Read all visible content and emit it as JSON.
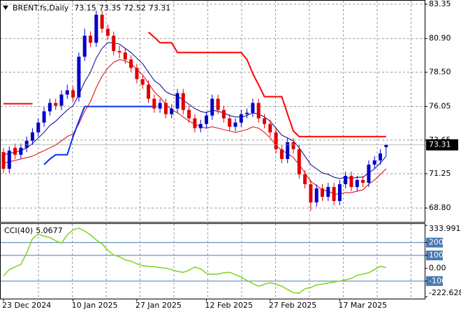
{
  "chart_data": [
    {
      "type": "candlestick",
      "title": "BRENT.fs,Daily",
      "categories": [
        "23 Dec 2024",
        null,
        null,
        null,
        null,
        null,
        null,
        null,
        null,
        null,
        null,
        null,
        "10 Jan 2025",
        null,
        null,
        null,
        null,
        null,
        null,
        null,
        null,
        null,
        null,
        "27 Jan 2025",
        null,
        null,
        null,
        null,
        null,
        null,
        null,
        null,
        null,
        null,
        null,
        "12 Feb 2025",
        null,
        null,
        null,
        null,
        null,
        null,
        null,
        null,
        null,
        null,
        "27 Feb 2025",
        null,
        null,
        null,
        null,
        null,
        null,
        null,
        null,
        null,
        null,
        null,
        "17 Mar 2025",
        null,
        null,
        null,
        null,
        null,
        null,
        null,
        null
      ],
      "open": [
        72.8,
        71.6,
        73.1,
        72.6,
        73.1,
        73.6,
        74.2,
        74.9,
        75.7,
        76.3,
        76.1,
        76.9,
        77.2,
        76.7,
        79.6,
        81.1,
        80.6,
        82.6,
        81.6,
        81.1,
        80.0,
        79.9,
        79.4,
        78.8,
        78.0,
        77.6,
        76.6,
        75.9,
        76.3,
        75.5,
        75.9,
        77.0,
        75.8,
        75.2,
        74.5,
        74.8,
        75.4,
        76.6,
        75.8,
        75.2,
        74.6,
        74.9,
        75.5,
        75.6,
        76.3,
        75.2,
        74.8,
        74.2,
        73.0,
        72.3,
        73.5,
        73.0,
        71.2,
        70.5,
        69.2,
        70.2,
        69.6,
        70.3,
        69.3,
        70.5,
        71.1,
        70.3,
        70.8,
        70.6,
        71.9,
        72.2,
        73.15
      ],
      "high": [
        73.1,
        73.2,
        73.4,
        73.4,
        73.9,
        74.5,
        75.2,
        76.0,
        76.6,
        76.6,
        77.2,
        77.6,
        77.5,
        79.9,
        81.6,
        81.4,
        82.9,
        82.9,
        81.9,
        81.4,
        80.4,
        80.2,
        79.7,
        79.1,
        78.3,
        77.9,
        76.9,
        76.6,
        76.6,
        76.2,
        77.3,
        77.3,
        76.1,
        75.5,
        75.1,
        75.7,
        76.9,
        76.9,
        76.1,
        75.5,
        75.2,
        75.8,
        75.9,
        76.6,
        76.6,
        75.5,
        75.1,
        74.5,
        73.3,
        73.8,
        73.8,
        73.3,
        71.5,
        70.8,
        70.5,
        70.5,
        70.6,
        70.6,
        70.8,
        71.4,
        71.4,
        71.1,
        71.1,
        72.2,
        72.5,
        73.0,
        73.35
      ],
      "low": [
        71.3,
        71.3,
        72.3,
        72.3,
        72.8,
        73.3,
        73.9,
        74.6,
        75.4,
        75.8,
        75.8,
        76.6,
        76.4,
        76.4,
        79.3,
        80.3,
        80.3,
        81.3,
        80.8,
        79.7,
        79.5,
        79.1,
        78.5,
        77.7,
        77.3,
        76.3,
        75.6,
        75.6,
        75.2,
        75.2,
        75.6,
        75.5,
        74.9,
        74.2,
        74.2,
        74.5,
        75.1,
        75.5,
        74.9,
        74.3,
        74.3,
        74.6,
        75.2,
        75.3,
        74.9,
        74.5,
        73.9,
        72.7,
        72.0,
        72.0,
        72.7,
        70.9,
        70.2,
        68.6,
        68.9,
        69.3,
        69.3,
        69.0,
        69.0,
        70.2,
        70.0,
        70.0,
        70.3,
        70.3,
        71.6,
        71.9,
        72.52
      ],
      "close": [
        71.6,
        72.9,
        72.6,
        73.1,
        73.6,
        74.2,
        74.9,
        75.7,
        76.3,
        76.1,
        76.9,
        77.2,
        76.7,
        79.6,
        81.1,
        80.6,
        82.6,
        81.6,
        81.1,
        80.0,
        79.9,
        79.4,
        78.8,
        78.0,
        77.6,
        76.6,
        75.9,
        76.3,
        75.5,
        75.9,
        77.0,
        75.8,
        75.2,
        74.5,
        74.8,
        75.4,
        76.6,
        75.8,
        75.2,
        74.6,
        74.9,
        75.5,
        75.6,
        76.3,
        75.2,
        74.8,
        74.2,
        73.0,
        72.3,
        73.5,
        73.0,
        71.2,
        70.5,
        69.2,
        70.2,
        69.6,
        70.3,
        69.3,
        70.5,
        71.1,
        70.3,
        70.8,
        70.6,
        71.9,
        72.2,
        72.7,
        73.31
      ],
      "up_color": "#0000c8",
      "down_color": "#e00000",
      "lines": [
        {
          "color": "#00008b",
          "width": 1,
          "values": [
            72.6,
            72.7,
            72.8,
            72.9,
            73.1,
            73.4,
            73.8,
            74.2,
            74.7,
            75.0,
            75.4,
            75.8,
            76.1,
            76.9,
            77.8,
            78.5,
            79.5,
            80.2,
            80.6,
            80.6,
            80.5,
            80.2,
            79.9,
            79.5,
            79.1,
            78.5,
            77.9,
            77.6,
            77.1,
            76.9,
            76.8,
            76.5,
            76.2,
            75.9,
            75.7,
            75.6,
            75.8,
            75.7,
            75.6,
            75.4,
            75.3,
            75.3,
            75.4,
            75.6,
            75.5,
            75.3,
            75.0,
            74.5,
            74.0,
            73.8,
            73.6,
            73.1,
            72.5,
            71.9,
            71.6,
            71.3,
            71.2,
            71.0,
            70.9,
            71.0,
            70.9,
            71.0,
            71.0,
            71.3,
            71.6,
            72.0,
            72.5
          ]
        },
        {
          "color": "#e00000",
          "width": 1,
          "values": [
            72.0,
            72.1,
            72.2,
            72.3,
            72.4,
            72.5,
            72.7,
            72.9,
            73.1,
            73.3,
            73.6,
            73.9,
            74.1,
            74.8,
            75.7,
            76.4,
            77.4,
            78.2,
            78.8,
            79.2,
            79.4,
            79.3,
            79.1,
            78.7,
            78.3,
            77.7,
            77.1,
            76.7,
            76.2,
            75.8,
            75.6,
            75.3,
            75.0,
            74.8,
            74.6,
            74.5,
            74.6,
            74.5,
            74.4,
            74.3,
            74.2,
            74.3,
            74.4,
            74.6,
            74.5,
            74.2,
            73.8,
            73.3,
            72.9,
            72.7,
            72.4,
            71.9,
            71.3,
            70.7,
            70.4,
            70.1,
            70.0,
            69.8,
            69.8,
            69.9,
            69.9,
            70.0,
            70.1,
            70.5,
            70.8,
            71.2,
            71.6
          ]
        },
        {
          "color": "#ff0000",
          "width": 2,
          "values": [
            76.25,
            76.25,
            76.25,
            76.25,
            76.25,
            76.25,
            null,
            null,
            null,
            null,
            null,
            null,
            null,
            null,
            null,
            null,
            null,
            null,
            null,
            null,
            null,
            null,
            null,
            null,
            null,
            81.35,
            81.0,
            80.6,
            80.6,
            80.6,
            79.9,
            79.9,
            79.9,
            79.9,
            79.9,
            79.9,
            79.9,
            79.9,
            79.9,
            79.9,
            79.9,
            79.9,
            79.4,
            78.4,
            77.6,
            76.75,
            76.75,
            76.75,
            76.75,
            75.5,
            74.3,
            73.9,
            73.9,
            73.9,
            73.9,
            73.9,
            73.9,
            73.9,
            73.9,
            73.9,
            73.9,
            73.9,
            73.9,
            73.9,
            73.9,
            73.9,
            73.9
          ]
        },
        {
          "color": "#0030ff",
          "width": 2,
          "values": [
            null,
            null,
            null,
            null,
            null,
            null,
            null,
            71.9,
            72.3,
            72.6,
            72.6,
            72.6,
            73.9,
            75.0,
            76.05,
            76.05,
            76.05,
            76.05,
            76.05,
            76.05,
            76.05,
            76.05,
            76.05,
            76.05,
            76.05,
            76.05,
            76.05,
            null,
            null,
            null,
            null,
            null,
            null,
            null,
            null,
            null,
            null,
            null,
            null,
            null,
            null,
            null,
            null,
            null,
            null,
            null,
            null,
            null,
            null,
            null,
            null,
            null,
            null,
            null,
            null,
            null,
            null,
            null,
            null,
            null,
            null,
            null,
            null,
            null,
            null,
            null,
            null
          ]
        }
      ],
      "ylim": [
        67.81,
        83.6
      ],
      "yticks": [
        83.35,
        {
          "value": 80.9,
          "label": "80.90"
        },
        {
          "value": 78.5,
          "label": "78.50"
        },
        76.05,
        73.65,
        71.25,
        {
          "value": 68.8,
          "label": "68.80"
        }
      ],
      "grid": true
    },
    {
      "type": "line",
      "title": "CCI(40)",
      "color": "#7ed321",
      "values": [
        -60,
        -10,
        10,
        30,
        120,
        230,
        265,
        250,
        240,
        215,
        195,
        260,
        300,
        313,
        290,
        260,
        220,
        190,
        140,
        103,
        90,
        65,
        55,
        35,
        20,
        15,
        12,
        5,
        0,
        -10,
        -25,
        -32,
        -15,
        10,
        -5,
        -40,
        -48,
        -45,
        -35,
        -32,
        -50,
        -70,
        -95,
        -120,
        -140,
        -125,
        -113,
        -125,
        -140,
        -165,
        -190,
        -195,
        -160,
        -150,
        -130,
        -124,
        -115,
        -108,
        -100,
        -90,
        -80,
        -55,
        -45,
        -35,
        -10,
        15,
        5.0677
      ],
      "ylim": [
        -237,
        345
      ],
      "yticks": [
        333.991,
        200,
        100,
        {
          "value": 0,
          "label": "0.00"
        },
        -100,
        -222.628
      ],
      "levels": [
        200,
        100,
        -100
      ],
      "level_color": "#4a7ab0"
    }
  ]
}
